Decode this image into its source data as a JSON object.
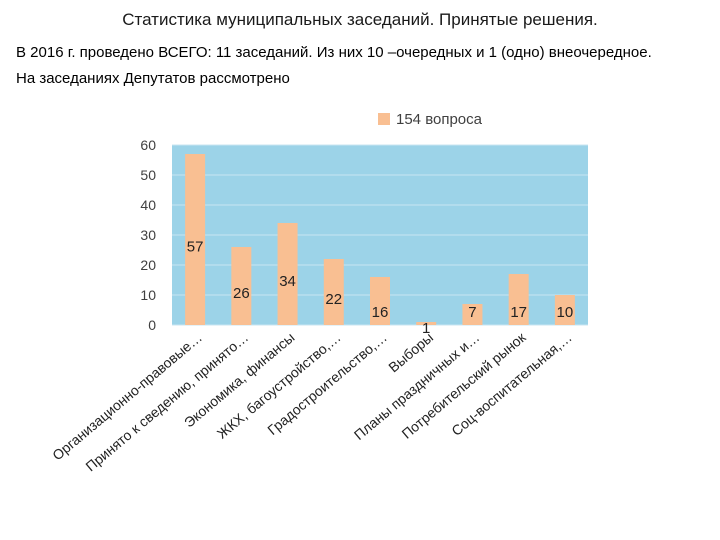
{
  "header": {
    "title": "Статистика муниципальных заседаний. Принятые решения.",
    "line1": "В 2016 г. проведено ВСЕГО: 11 заседаний. Из них 10 –очередных и 1 (одно) внеочередное.",
    "line2": "На заседаниях Депутатов рассмотрено"
  },
  "colors": {
    "plot_bg": "#9cd3e8",
    "bar": "#f9bf92",
    "grid": "#c8e6f2"
  },
  "chart_data": {
    "type": "bar",
    "categories": [
      "Организационно-правовые…",
      "Принято к сведению, принято…",
      "Экономика, финансы",
      "ЖКХ, багоустройство,…",
      "Градостроительство,…",
      "Выборы",
      "Планы праздничных и…",
      "Потребительский рынок",
      "Соц-воспитательная,…"
    ],
    "series": [
      {
        "name": "154 вопроса",
        "values": [
          57,
          26,
          34,
          22,
          16,
          1,
          7,
          17,
          10
        ]
      }
    ],
    "data_labels": [
      "57",
      "26",
      "34",
      "22",
      "16",
      "1",
      "7",
      "17",
      "10"
    ],
    "yticks": [
      "0",
      "10",
      "20",
      "30",
      "40",
      "50",
      "60"
    ],
    "ylim": [
      0,
      60
    ],
    "legend_position": "top",
    "grid": false
  }
}
